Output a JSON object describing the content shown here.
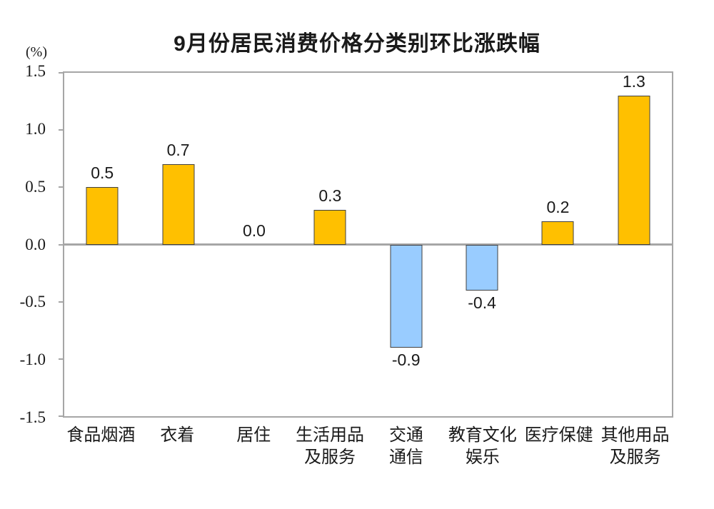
{
  "chart_data": {
    "type": "bar",
    "title": "9月份居民消费价格分类别环比涨跌幅",
    "unit_label": "(%)",
    "categories": [
      "食品烟酒",
      "衣着",
      "居住",
      "生活用品及服务",
      "交通通信",
      "教育文化娱乐",
      "医疗保健",
      "其他用品及服务"
    ],
    "category_label_lines": [
      [
        "食品烟酒"
      ],
      [
        "衣着"
      ],
      [
        "居住"
      ],
      [
        "生活用品",
        "及服务"
      ],
      [
        "交通",
        "通信"
      ],
      [
        "教育文化",
        "娱乐"
      ],
      [
        "医疗保健"
      ],
      [
        "其他用品",
        "及服务"
      ]
    ],
    "values": [
      0.5,
      0.7,
      0.0,
      0.3,
      -0.9,
      -0.4,
      0.2,
      1.3
    ],
    "value_labels": [
      "0.5",
      "0.7",
      "0.0",
      "0.3",
      "-0.9",
      "-0.4",
      "0.2",
      "1.3"
    ],
    "xlabel": "",
    "ylabel": "(%)",
    "ylim": [
      -1.5,
      1.5
    ],
    "ytick_values": [
      1.5,
      1.0,
      0.5,
      0.0,
      -0.5,
      -1.0,
      -1.5
    ],
    "ytick_labels": [
      "1.5",
      "1.0",
      "0.5",
      "0.0",
      "-0.5",
      "-1.0",
      "-1.5"
    ],
    "grid": false,
    "legend": "none",
    "colors": {
      "positive_bar": "#FFC000",
      "negative_bar": "#99CCFF",
      "bar_border": "#404040",
      "axis_line": "#A6A6A6",
      "text": "#1A1A1A",
      "background": "#FFFFFF"
    }
  }
}
